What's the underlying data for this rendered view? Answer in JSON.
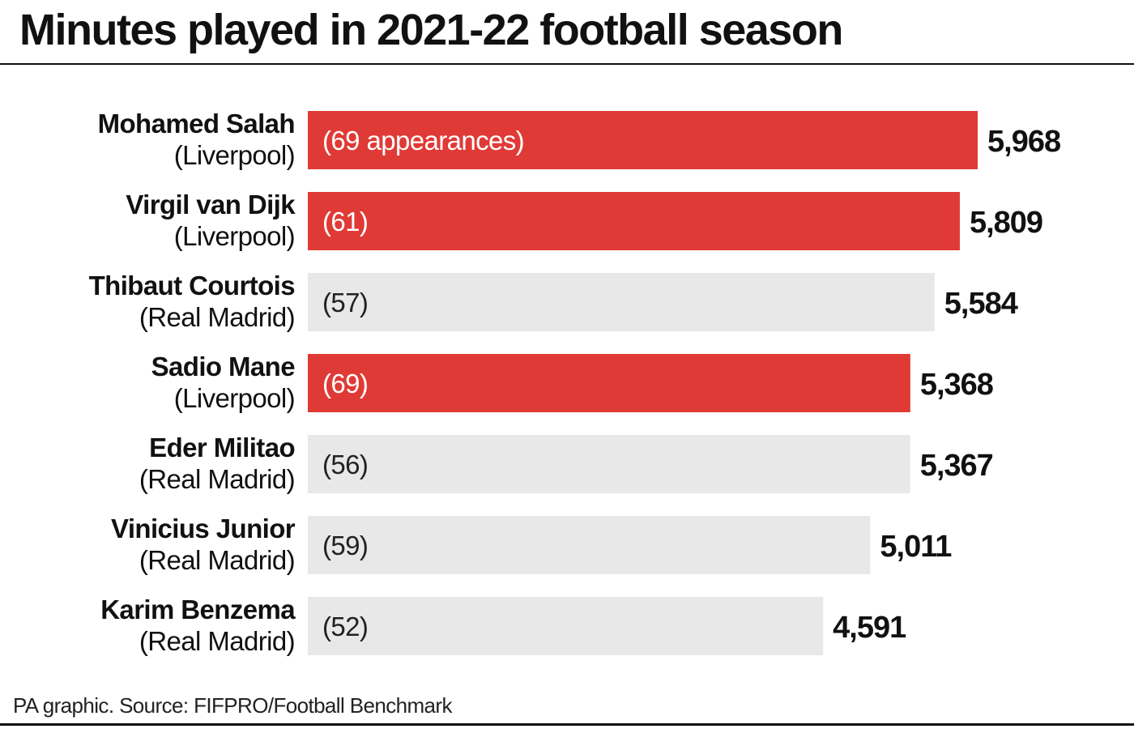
{
  "title": "Minutes played in 2021-22 football season",
  "source": "PA graphic. Source: FIFPRO/Football Benchmark",
  "colors": {
    "highlight": "#e03a36",
    "neutral": "#e8e8e8",
    "text": "#111111"
  },
  "chart_data": {
    "type": "bar",
    "orientation": "horizontal",
    "title": "Minutes played in 2021-22 football season",
    "categories": [
      "Mohamed Salah (Liverpool)",
      "Virgil van Dijk (Liverpool)",
      "Thibaut Courtois (Real Madrid)",
      "Sadio Mane (Liverpool)",
      "Eder Militao (Real Madrid)",
      "Vinicius Junior (Real Madrid)",
      "Karim Benzema (Real Madrid)"
    ],
    "rows": [
      {
        "name": "Mohamed Salah",
        "club": "(Liverpool)",
        "minutes": 5968,
        "value_label": "5,968",
        "appearances_label": "(69 appearances)",
        "highlight": true
      },
      {
        "name": "Virgil van Dijk",
        "club": "(Liverpool)",
        "minutes": 5809,
        "value_label": "5,809",
        "appearances_label": "(61)",
        "highlight": true
      },
      {
        "name": "Thibaut Courtois",
        "club": "(Real Madrid)",
        "minutes": 5584,
        "value_label": "5,584",
        "appearances_label": "(57)",
        "highlight": false
      },
      {
        "name": "Sadio Mane",
        "club": "(Liverpool)",
        "minutes": 5368,
        "value_label": "5,368",
        "appearances_label": "(69)",
        "highlight": true
      },
      {
        "name": "Eder Militao",
        "club": "(Real Madrid)",
        "minutes": 5367,
        "value_label": "5,367",
        "appearances_label": "(56)",
        "highlight": false
      },
      {
        "name": "Vinicius Junior",
        "club": "(Real Madrid)",
        "minutes": 5011,
        "value_label": "5,011",
        "appearances_label": "(59)",
        "highlight": false
      },
      {
        "name": "Karim Benzema",
        "club": "(Real Madrid)",
        "minutes": 4591,
        "value_label": "4,591",
        "appearances_label": "(52)",
        "highlight": false
      }
    ],
    "values": [
      5968,
      5809,
      5584,
      5368,
      5367,
      5011,
      4591
    ],
    "xlim": [
      0,
      5968
    ],
    "grid": false,
    "legend": "none"
  }
}
